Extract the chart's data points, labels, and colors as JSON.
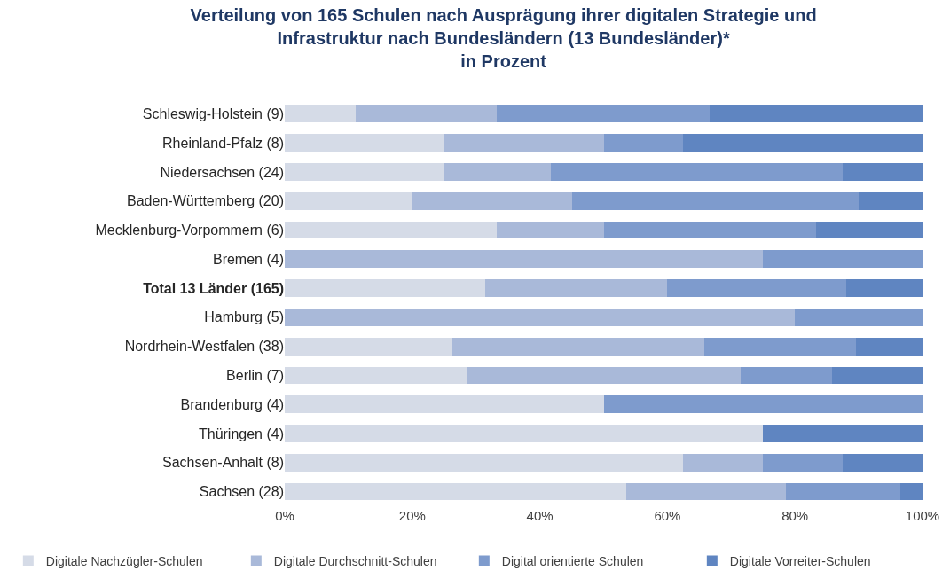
{
  "chart_data": {
    "type": "bar",
    "orientation": "horizontal",
    "stacked": true,
    "title": "Verteilung von 165 Schulen nach Ausprägung ihrer digitalen Strategie und\nInfrastruktur nach Bundesländern (13 Bundesländer)*\nin Prozent",
    "categories": [
      "Schleswig-Holstein (9)",
      "Rheinland-Pfalz (8)",
      "Niedersachsen (24)",
      "Baden-Württemberg (20)",
      "Mecklenburg-Vorpommern (6)",
      "Bremen (4)",
      "Total 13 Länder (165)",
      "Hamburg (5)",
      "Nordrhein-Westfalen (38)",
      "Berlin (7)",
      "Brandenburg (4)",
      "Thüringen (4)",
      "Sachsen-Anhalt (8)",
      "Sachsen (28)"
    ],
    "series": [
      {
        "name": "Digitale Nachzügler-Schulen",
        "color": "#d5dbe7",
        "values": [
          11.1,
          25,
          25,
          20,
          33.3,
          0,
          31.5,
          0,
          26.3,
          28.6,
          50,
          75,
          62.5,
          53.6
        ]
      },
      {
        "name": "Digitale Durchschnitt-Schulen",
        "color": "#a9b9d9",
        "values": [
          22.2,
          25,
          16.7,
          25,
          16.7,
          75,
          28.5,
          80,
          39.5,
          42.9,
          0,
          0,
          12.5,
          25
        ]
      },
      {
        "name": "Digital orientierte Schulen",
        "color": "#7e9bcd",
        "values": [
          33.3,
          12.5,
          45.8,
          45,
          33.3,
          25,
          28,
          20,
          23.7,
          14.3,
          50,
          0,
          12.5,
          17.9
        ]
      },
      {
        "name": "Digitale Vorreiter-Schulen",
        "color": "#5f85c1",
        "values": [
          33.4,
          37.5,
          12.5,
          10,
          16.7,
          0,
          12,
          0,
          10.5,
          14.2,
          0,
          25,
          12.5,
          3.5
        ]
      }
    ],
    "xlim": [
      0,
      100
    ],
    "xticks": [
      {
        "value": 0,
        "label": "0%"
      },
      {
        "value": 20,
        "label": "20%"
      },
      {
        "value": 40,
        "label": "40%"
      },
      {
        "value": 60,
        "label": "60%"
      },
      {
        "value": 80,
        "label": "80%"
      },
      {
        "value": 100,
        "label": "100%"
      }
    ],
    "legend": "bottom"
  }
}
